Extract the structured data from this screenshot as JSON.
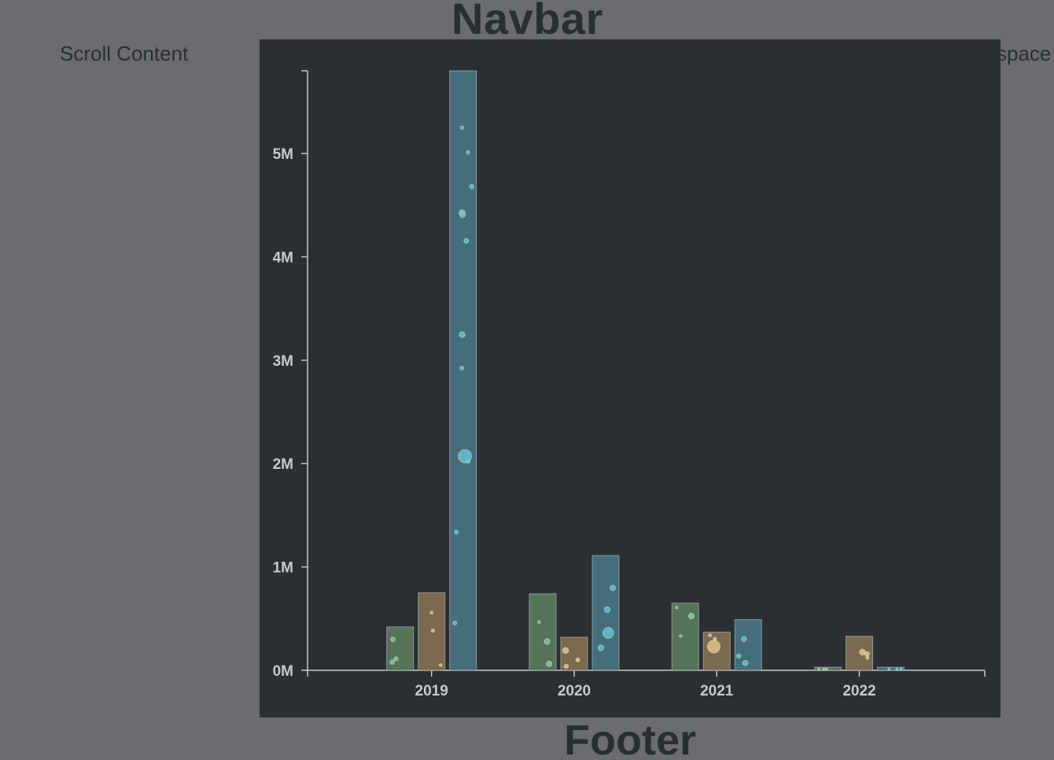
{
  "page": {
    "navbar_title": "Navbar",
    "scroll_label": "Scroll Content",
    "space_label": "space",
    "footer_title": "Footer"
  },
  "colors": {
    "page_bg": "#6b6c70",
    "panel_bg": "#2b2f33",
    "axis": "#c8c9cb",
    "series": [
      "#56735a",
      "#7a6a4e",
      "#456e7a"
    ],
    "bubbles": [
      "#8dc79a",
      "#e9c88e",
      "#6cc3d6"
    ]
  },
  "chart_data": {
    "type": "bar",
    "categories": [
      "2019",
      "2020",
      "2021",
      "2022"
    ],
    "series": [
      {
        "values": [
          420000,
          740000,
          650000,
          30000
        ]
      },
      {
        "values": [
          750000,
          320000,
          370000,
          330000
        ]
      },
      {
        "values": [
          5800000,
          1110000,
          490000,
          30000
        ]
      }
    ],
    "ylim": [
      0,
      5800000
    ],
    "yticks": [
      0,
      1000000,
      2000000,
      3000000,
      4000000,
      5000000
    ],
    "ytick_labels": [
      "0M",
      "1M",
      "2M",
      "3M",
      "4M",
      "5M"
    ],
    "xlabel": "",
    "ylabel": "",
    "title": "",
    "grid": false
  }
}
